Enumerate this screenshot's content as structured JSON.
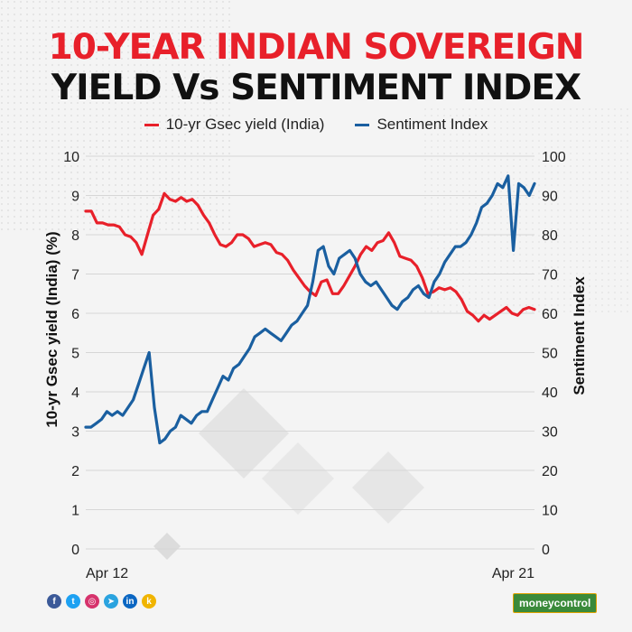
{
  "title": {
    "line1": "10-YEAR INDIAN SOVEREIGN",
    "line2": "YIELD Vs SENTIMENT INDEX",
    "line1_color": "#e8202a",
    "line2_color": "#111111"
  },
  "chart_data": {
    "type": "line",
    "xlabel": "",
    "x_tick_labels": [
      "Apr 12",
      "Apr 21"
    ],
    "left_axis": {
      "label": "10-yr Gsec yield (India) (%)",
      "min": 0,
      "max": 10,
      "ticks": [
        "0",
        "1",
        "2",
        "3",
        "4",
        "5",
        "6",
        "7",
        "8",
        "9",
        "10"
      ]
    },
    "right_axis": {
      "label": "Sentiment Index",
      "min": 0,
      "max": 100,
      "ticks": [
        "0",
        "10",
        "20",
        "30",
        "40",
        "50",
        "60",
        "70",
        "80",
        "90",
        "100"
      ]
    },
    "grid": true,
    "legend_position": "top-center",
    "series": [
      {
        "name": "10-yr Gsec yield (India)",
        "axis": "left",
        "color": "#e8202a",
        "values": [
          8.6,
          8.6,
          8.3,
          8.3,
          8.25,
          8.25,
          8.2,
          8.0,
          7.95,
          7.8,
          7.5,
          8.0,
          8.5,
          8.65,
          9.05,
          8.9,
          8.85,
          8.95,
          8.85,
          8.9,
          8.75,
          8.5,
          8.3,
          8.0,
          7.75,
          7.7,
          7.8,
          8.0,
          8.0,
          7.9,
          7.7,
          7.75,
          7.8,
          7.75,
          7.55,
          7.5,
          7.35,
          7.1,
          6.9,
          6.7,
          6.55,
          6.45,
          6.8,
          6.85,
          6.5,
          6.5,
          6.7,
          6.95,
          7.2,
          7.5,
          7.7,
          7.6,
          7.8,
          7.85,
          8.05,
          7.8,
          7.45,
          7.4,
          7.35,
          7.2,
          6.9,
          6.5,
          6.55,
          6.65,
          6.6,
          6.65,
          6.55,
          6.35,
          6.05,
          5.95,
          5.8,
          5.95,
          5.85,
          5.95,
          6.05,
          6.15,
          6.0,
          5.95,
          6.1,
          6.15,
          6.1
        ]
      },
      {
        "name": "Sentiment Index",
        "axis": "right",
        "color": "#1a5fa0",
        "values": [
          31,
          31,
          32,
          33,
          35,
          34,
          35,
          34,
          36,
          38,
          42,
          46,
          50,
          36,
          27,
          28,
          30,
          31,
          34,
          33,
          32,
          34,
          35,
          35,
          38,
          41,
          44,
          43,
          46,
          47,
          49,
          51,
          54,
          55,
          56,
          55,
          54,
          53,
          55,
          57,
          58,
          60,
          62,
          68,
          76,
          77,
          72,
          70,
          74,
          75,
          76,
          74,
          70,
          68,
          67,
          68,
          66,
          64,
          62,
          61,
          63,
          64,
          66,
          67,
          65,
          64,
          68,
          70,
          73,
          75,
          77,
          77,
          78,
          80,
          83,
          87,
          88,
          90,
          93,
          92,
          95,
          76,
          93,
          92,
          90,
          93
        ]
      }
    ]
  },
  "social_icons": [
    "facebook-icon",
    "twitter-icon",
    "instagram-icon",
    "telegram-icon",
    "linkedin-icon",
    "koo-icon"
  ],
  "brand": {
    "name": "moneycontrol",
    "color": "#3a8a3a"
  }
}
